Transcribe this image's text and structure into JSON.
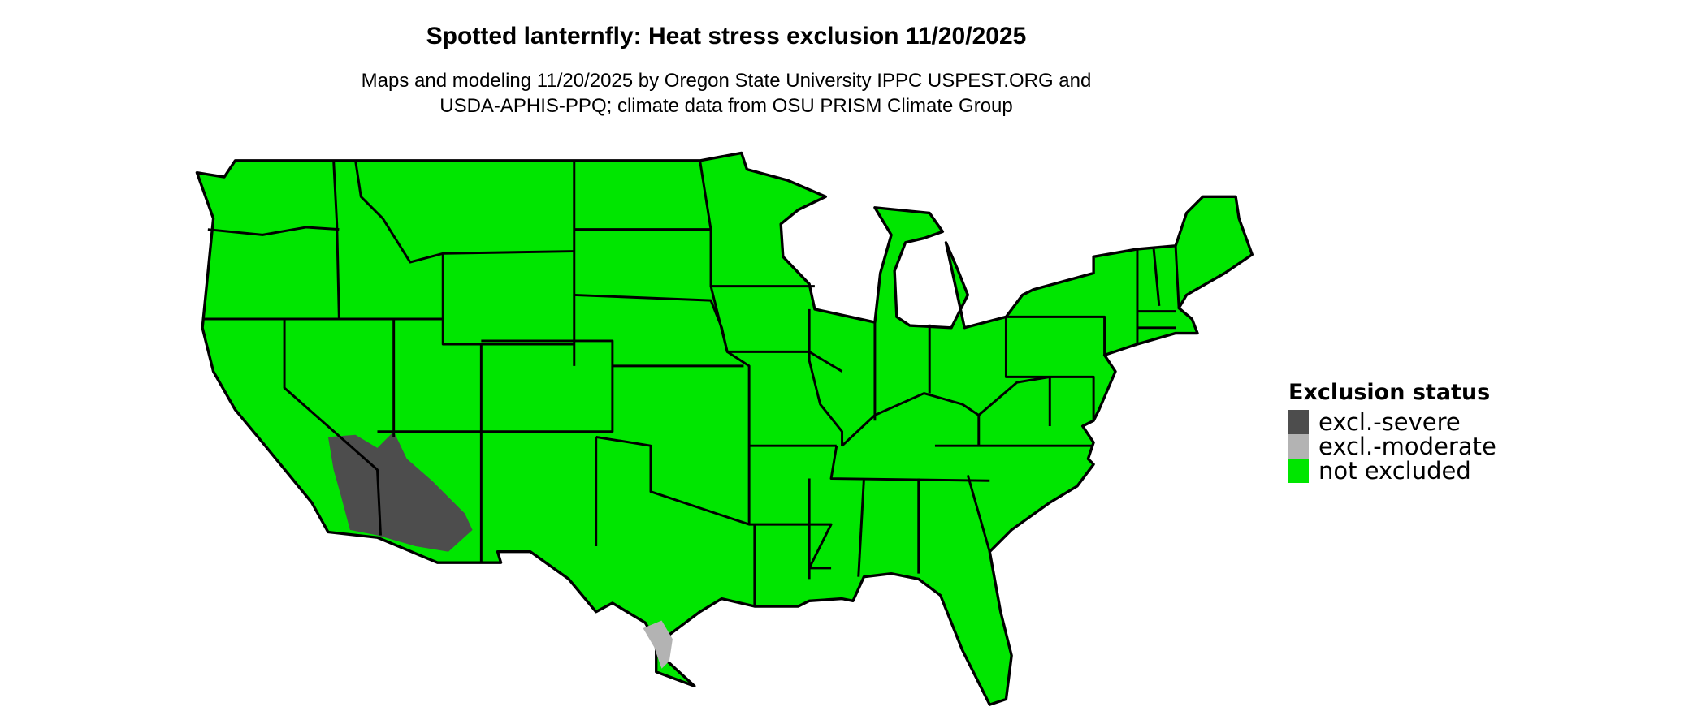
{
  "title": "Spotted lanternfly: Heat stress exclusion 11/20/2025",
  "subtitle_lines": [
    "Maps and modeling 11/20/2025 by Oregon State University IPPC USPEST.ORG and",
    "USDA-APHIS-PPQ; climate data from OSU PRISM Climate Group"
  ],
  "map": {
    "region": "contiguous United States",
    "fill_colors": {
      "not_excluded": "#00e600",
      "severe": "#4d4d4d",
      "moderate": "#b3b3b3",
      "border": "#000000"
    }
  },
  "legend": {
    "title": "Exclusion status",
    "items": [
      {
        "label": "excl.-severe",
        "color": "#4d4d4d"
      },
      {
        "label": "excl.-moderate",
        "color": "#b3b3b3"
      },
      {
        "label": "not excluded",
        "color": "#00e600"
      }
    ]
  }
}
